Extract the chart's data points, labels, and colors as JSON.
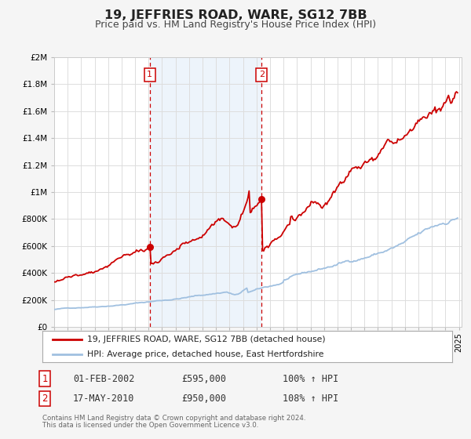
{
  "title": "19, JEFFRIES ROAD, WARE, SG12 7BB",
  "subtitle": "Price paid vs. HM Land Registry's House Price Index (HPI)",
  "title_fontsize": 11.5,
  "subtitle_fontsize": 9,
  "background_color": "#f5f5f5",
  "plot_bg_color": "#ffffff",
  "grid_color": "#dddddd",
  "hpi_line_color": "#a0c0e0",
  "price_line_color": "#cc0000",
  "shade_color": "#cce0f5",
  "xmin": 1995.0,
  "xmax": 2025.2,
  "ymin": 0,
  "ymax": 2000000,
  "yticks": [
    0,
    200000,
    400000,
    600000,
    800000,
    1000000,
    1200000,
    1400000,
    1600000,
    1800000,
    2000000
  ],
  "ytick_labels": [
    "£0",
    "£200K",
    "£400K",
    "£600K",
    "£800K",
    "£1M",
    "£1.2M",
    "£1.4M",
    "£1.6M",
    "£1.8M",
    "£2M"
  ],
  "xticks": [
    1995,
    1996,
    1997,
    1998,
    1999,
    2000,
    2001,
    2002,
    2003,
    2004,
    2005,
    2006,
    2007,
    2008,
    2009,
    2010,
    2011,
    2012,
    2013,
    2014,
    2015,
    2016,
    2017,
    2018,
    2019,
    2020,
    2021,
    2022,
    2023,
    2024,
    2025
  ],
  "event1_x": 2002.08,
  "event1_price": 595000,
  "event1_date": "01-FEB-2002",
  "event1_hpi_str": "100% ↑ HPI",
  "event2_x": 2010.38,
  "event2_price": 950000,
  "event2_date": "17-MAY-2010",
  "event2_hpi_str": "108% ↑ HPI",
  "legend_line1": "19, JEFFRIES ROAD, WARE, SG12 7BB (detached house)",
  "legend_line2": "HPI: Average price, detached house, East Hertfordshire",
  "footer1": "Contains HM Land Registry data © Crown copyright and database right 2024.",
  "footer2": "This data is licensed under the Open Government Licence v3.0."
}
